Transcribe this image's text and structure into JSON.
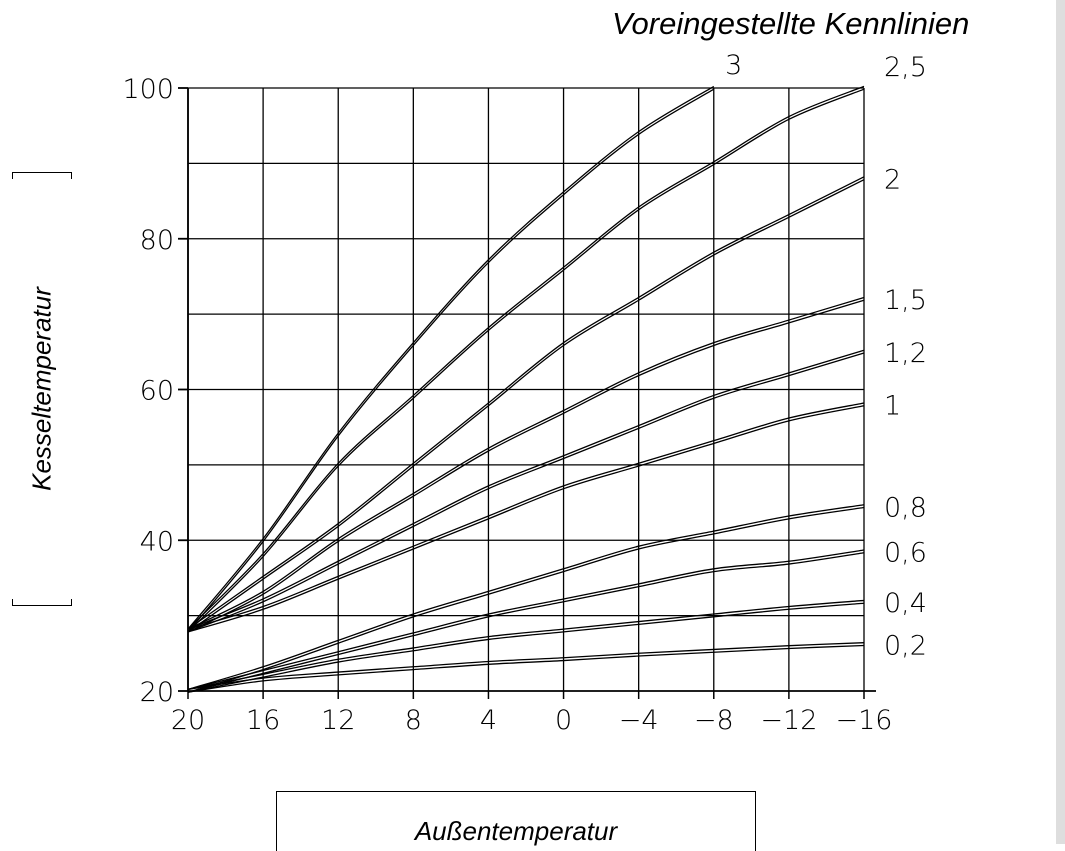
{
  "chart_data": {
    "type": "line",
    "title": "Voreingestellte Kennlinien",
    "xlabel": "Außentemperatur",
    "ylabel": "Kesseltemperatur",
    "xlim": [
      20,
      -16
    ],
    "ylim": [
      20,
      100
    ],
    "x_ticks": [
      "20",
      "16",
      "12",
      "8",
      "4",
      "0",
      "−4",
      "−8",
      "−12",
      "−16"
    ],
    "y_ticks": [
      "20",
      "40",
      "60",
      "80",
      "100"
    ],
    "grid": true,
    "x": [
      20,
      16,
      12,
      8,
      4,
      0,
      -4,
      -8,
      -12,
      -16
    ],
    "series": [
      {
        "name": "3",
        "label_position": "top",
        "values": [
          28,
          40,
          54,
          66,
          77,
          86,
          94,
          100,
          null,
          null
        ]
      },
      {
        "name": "2,5",
        "label_position": "right",
        "values": [
          28,
          38,
          50,
          59,
          68,
          76,
          84,
          90,
          96,
          100
        ]
      },
      {
        "name": "2",
        "values": [
          28,
          35,
          42,
          50,
          58,
          66,
          72,
          78,
          83,
          88
        ]
      },
      {
        "name": "1,5",
        "values": [
          28,
          33,
          40,
          46,
          52,
          57,
          62,
          66,
          69,
          72
        ]
      },
      {
        "name": "1,2",
        "values": [
          28,
          32,
          37,
          42,
          47,
          51,
          55,
          59,
          62,
          65
        ]
      },
      {
        "name": "1",
        "values": [
          28,
          31,
          35,
          39,
          43,
          47,
          50,
          53,
          56,
          58
        ]
      },
      {
        "name": "0,8",
        "values": [
          20,
          23,
          26.5,
          30,
          33,
          36,
          39,
          41,
          43,
          44.5
        ]
      },
      {
        "name": "0,6",
        "values": [
          20,
          22.5,
          25,
          27.5,
          30,
          32,
          34,
          36,
          37,
          38.5
        ]
      },
      {
        "name": "0,4",
        "values": [
          20,
          22,
          24,
          25.5,
          27,
          28,
          29,
          30,
          31,
          31.8
        ]
      },
      {
        "name": "0,2",
        "values": [
          20,
          21.5,
          22.3,
          23,
          23.7,
          24.2,
          24.8,
          25.3,
          25.8,
          26.2
        ]
      }
    ]
  },
  "colors": {
    "line": "#000000",
    "grid": "#000000",
    "background": "#ffffff",
    "scrollbar": "#dedede"
  }
}
